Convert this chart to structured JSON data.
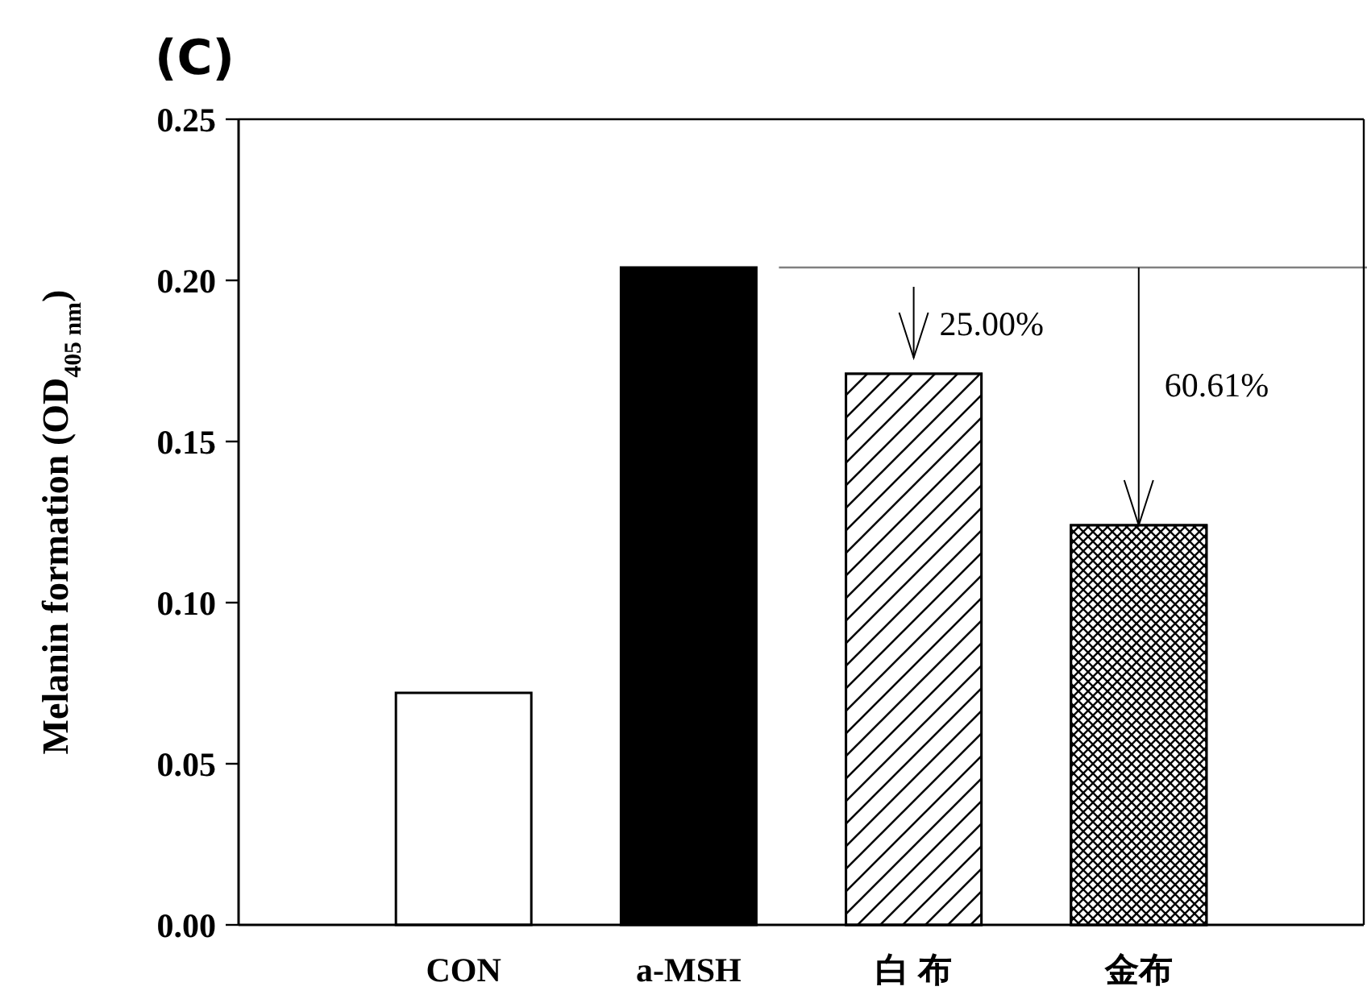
{
  "chart_data": {
    "type": "bar",
    "title": "(C)",
    "ylabel": "Melanin formation (OD$_{405 nm}$)",
    "categories": [
      "CON",
      "a-MSH",
      "白 布",
      "金布"
    ],
    "values": [
      0.072,
      0.204,
      0.171,
      0.124
    ],
    "colors": [
      "#ffffff",
      "#000000",
      "#ffffff",
      "#ffffff"
    ],
    "ylim": [
      0,
      0.25
    ],
    "yticks": [
      {
        "value": 0,
        "label": "0.00"
      },
      {
        "value": 0.05,
        "label": "0.05"
      },
      {
        "value": 0.1,
        "label": "0.10"
      },
      {
        "value": 0.15,
        "label": "0.15"
      },
      {
        "value": 0.2,
        "label": "0.20"
      },
      {
        "value": 0.25,
        "label": "0.25"
      }
    ],
    "ref_lines": [
      {
        "axis": "y",
        "value": 0.204,
        "color": "#808080"
      }
    ],
    "annotations": [
      "25.00%",
      "60.61%"
    ],
    "grid": false
  }
}
